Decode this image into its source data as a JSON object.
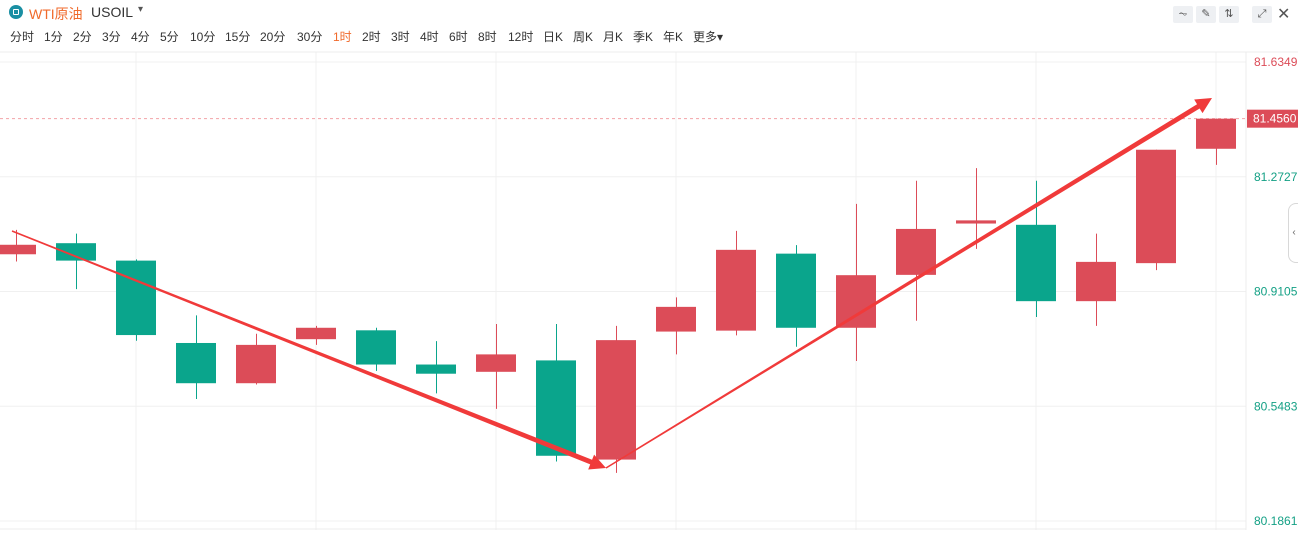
{
  "header": {
    "symbol_name": "WTI原油",
    "symbol_code": "USOIL",
    "symbol_caret": "▾",
    "tools": [
      "⏦",
      "✎",
      "⇅",
      "⤢"
    ],
    "close": "✕"
  },
  "intervals": [
    {
      "label": "分时",
      "active": false
    },
    {
      "label": "1分",
      "active": false
    },
    {
      "label": "2分",
      "active": false
    },
    {
      "label": "3分",
      "active": false
    },
    {
      "label": "4分",
      "active": false
    },
    {
      "label": "5分",
      "active": false
    },
    {
      "label": "10分",
      "active": false
    },
    {
      "label": "15分",
      "active": false
    },
    {
      "label": "20分",
      "active": false
    },
    {
      "label": "30分",
      "active": false
    },
    {
      "label": "1时",
      "active": true
    },
    {
      "label": "2时",
      "active": false
    },
    {
      "label": "3时",
      "active": false
    },
    {
      "label": "4时",
      "active": false
    },
    {
      "label": "6时",
      "active": false
    },
    {
      "label": "8时",
      "active": false
    },
    {
      "label": "12时",
      "active": false
    },
    {
      "label": "日K",
      "active": false
    },
    {
      "label": "周K",
      "active": false
    },
    {
      "label": "月K",
      "active": false
    },
    {
      "label": "季K",
      "active": false
    },
    {
      "label": "年K",
      "active": false
    },
    {
      "label": "更多▾",
      "active": false
    }
  ],
  "side_handle": "‹",
  "colors": {
    "up": "#dc4c58",
    "down": "#0aa58c",
    "arrow": "#f03a3a",
    "grid": "#f0f0f0",
    "axis_text_up": "#dc4c58",
    "axis_text_down": "#14a085",
    "accent": "#f06a2b"
  },
  "chart_data": {
    "type": "candlestick",
    "y_ticks": [
      "81.6349",
      "81.2727",
      "80.9105",
      "80.5483",
      "80.1861"
    ],
    "current_price": "81.4560",
    "ylim": [
      80.1861,
      81.6349
    ],
    "candles": [
      {
        "o": 81.028,
        "c": 81.058,
        "h": 81.105,
        "l": 81.005
      },
      {
        "o": 81.063,
        "c": 81.008,
        "h": 81.093,
        "l": 80.918
      },
      {
        "o": 81.008,
        "c": 80.773,
        "h": 81.012,
        "l": 80.755
      },
      {
        "o": 80.748,
        "c": 80.621,
        "h": 80.835,
        "l": 80.571
      },
      {
        "o": 80.621,
        "c": 80.742,
        "h": 80.777,
        "l": 80.617
      },
      {
        "o": 80.76,
        "c": 80.796,
        "h": 80.802,
        "l": 80.742
      },
      {
        "o": 80.788,
        "c": 80.68,
        "h": 80.796,
        "l": 80.66
      },
      {
        "o": 80.68,
        "c": 80.651,
        "h": 80.754,
        "l": 80.589
      },
      {
        "o": 80.657,
        "c": 80.712,
        "h": 80.808,
        "l": 80.54
      },
      {
        "o": 80.693,
        "c": 80.392,
        "h": 80.808,
        "l": 80.374
      },
      {
        "o": 80.38,
        "c": 80.757,
        "h": 80.802,
        "l": 80.338
      },
      {
        "o": 80.784,
        "c": 80.862,
        "h": 80.892,
        "l": 80.712
      },
      {
        "o": 80.787,
        "c": 81.042,
        "h": 81.102,
        "l": 80.772
      },
      {
        "o": 81.03,
        "c": 80.796,
        "h": 81.057,
        "l": 80.736
      },
      {
        "o": 80.796,
        "c": 80.962,
        "h": 81.187,
        "l": 80.691
      },
      {
        "o": 80.963,
        "c": 81.108,
        "h": 81.26,
        "l": 80.818
      },
      {
        "o": 81.125,
        "c": 81.135,
        "h": 81.3,
        "l": 81.045
      },
      {
        "o": 81.121,
        "c": 80.88,
        "h": 81.26,
        "l": 80.83
      },
      {
        "o": 80.88,
        "c": 81.004,
        "h": 81.093,
        "l": 80.802
      },
      {
        "o": 81.0,
        "c": 81.358,
        "h": 81.358,
        "l": 80.978
      },
      {
        "o": 81.361,
        "c": 81.456,
        "h": 81.456,
        "l": 81.31
      }
    ]
  }
}
